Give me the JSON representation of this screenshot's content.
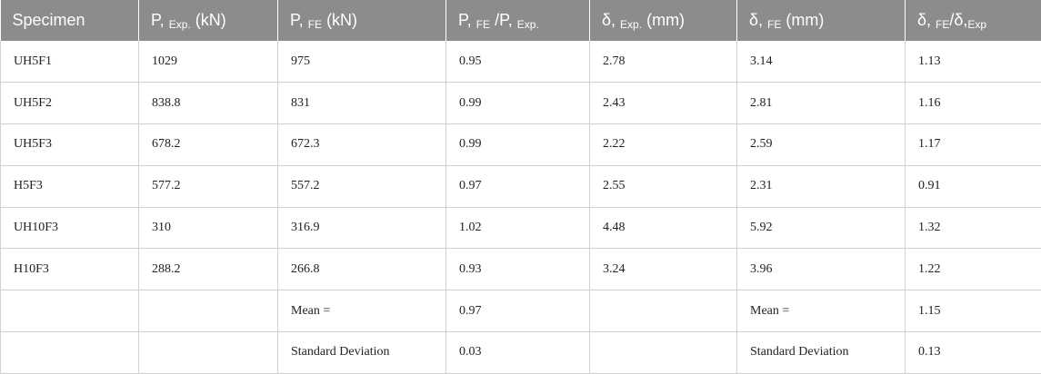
{
  "table": {
    "headers": [
      {
        "main": "Specimen",
        "sub": "",
        "tail": ""
      },
      {
        "main": "P,",
        "sub": "Exp.",
        "tail": "(kN)"
      },
      {
        "main": "P,",
        "sub": "FE",
        "tail": "(kN)"
      },
      {
        "main": "P,",
        "sub": "FE",
        "tail": "/P,",
        "sub2": "Exp."
      },
      {
        "main": "δ,",
        "sub": "Exp.",
        "tail": "(mm)"
      },
      {
        "main": "δ,",
        "sub": "FE",
        "tail": "(mm)"
      },
      {
        "main": "δ,",
        "sub": "FE",
        "tail": "/δ,",
        "sub2": "Exp"
      }
    ],
    "rows": [
      [
        "UH5F1",
        "1029",
        "975",
        "0.95",
        "2.78",
        "3.14",
        "1.13"
      ],
      [
        "UH5F2",
        "838.8",
        "831",
        "0.99",
        "2.43",
        "2.81",
        "1.16"
      ],
      [
        "UH5F3",
        "678.2",
        "672.3",
        "0.99",
        "2.22",
        "2.59",
        "1.17"
      ],
      [
        "H5F3",
        "577.2",
        "557.2",
        "0.97",
        "2.55",
        "2.31",
        "0.91"
      ],
      [
        "UH10F3",
        "310",
        "316.9",
        "1.02",
        "4.48",
        "5.92",
        "1.32"
      ],
      [
        "H10F3",
        "288.2",
        "266.8",
        "0.93",
        "3.24",
        "3.96",
        "1.22"
      ],
      [
        "",
        "",
        "Mean =",
        "0.97",
        "",
        "Mean =",
        "1.15"
      ],
      [
        "",
        "",
        "Standard Deviation",
        "0.03",
        "",
        "Standard Deviation",
        "0.13"
      ]
    ]
  }
}
